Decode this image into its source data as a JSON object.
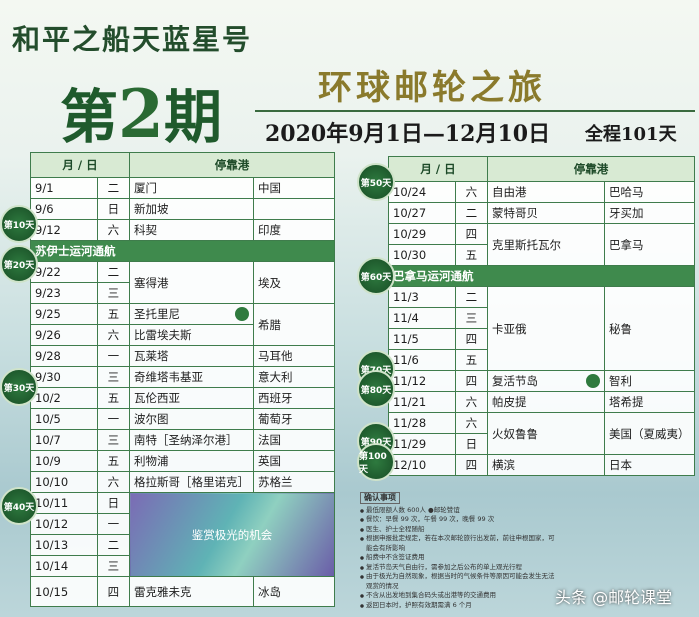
{
  "header": {
    "ship": "和平之船天蓝星号",
    "issue_prefix": "第",
    "issue_number": "2",
    "issue_suffix": "期",
    "title": "环球邮轮之旅",
    "dates": "2020年9月1日—12月10日",
    "duration": "全程101天"
  },
  "left_table": {
    "columns": [
      "月 / 日",
      "停靠港"
    ],
    "rows": [
      {
        "date": "9/1",
        "weekday": "二",
        "port": "厦门",
        "country": "中国"
      },
      {
        "date": "9/6",
        "weekday": "日",
        "port": "新加坡"
      },
      {
        "date": "9/12",
        "weekday": "六",
        "port": "科契",
        "country": "印度"
      },
      {
        "banner": "苏伊士运河通航"
      },
      {
        "date": "9/22",
        "weekday": "二",
        "port": "塞得港",
        "country": "埃及"
      },
      {
        "date": "9/23",
        "weekday": "三"
      },
      {
        "date": "9/25",
        "weekday": "五",
        "port": "圣托里尼",
        "country": "希腊"
      },
      {
        "date": "9/26",
        "weekday": "六",
        "port": "比雷埃夫斯"
      },
      {
        "date": "9/28",
        "weekday": "一",
        "port": "瓦莱塔",
        "country": "马耳他"
      },
      {
        "date": "9/30",
        "weekday": "三",
        "port": "奇维塔韦基亚",
        "country": "意大利"
      },
      {
        "date": "10/2",
        "weekday": "五",
        "port": "瓦伦西亚",
        "country": "西班牙"
      },
      {
        "date": "10/5",
        "weekday": "一",
        "port": "波尔图",
        "country": "葡萄牙"
      },
      {
        "date": "10/7",
        "weekday": "三",
        "port": "南特［圣纳泽尔港］",
        "country": "法国"
      },
      {
        "date": "10/9",
        "weekday": "五",
        "port": "利物浦",
        "country": "英国"
      },
      {
        "date": "10/10",
        "weekday": "六",
        "port": "格拉斯哥［格里诺克］",
        "country": "苏格兰"
      },
      {
        "date": "10/11",
        "weekday": "日",
        "highlight": "鉴赏极光的机会"
      },
      {
        "date": "10/12",
        "weekday": "一"
      },
      {
        "date": "10/13",
        "weekday": "二"
      },
      {
        "date": "10/14",
        "weekday": "三"
      },
      {
        "date": "10/15",
        "weekday": "四",
        "port": "雷克雅未克",
        "country": "冰岛"
      }
    ]
  },
  "right_table": {
    "columns": [
      "月 / 日",
      "停靠港"
    ],
    "rows": [
      {
        "date": "10/24",
        "weekday": "六",
        "port": "自由港",
        "country": "巴哈马"
      },
      {
        "date": "10/27",
        "weekday": "二",
        "port": "蒙特哥贝",
        "country": "牙买加"
      },
      {
        "date": "10/29",
        "weekday": "四",
        "port": "克里斯托瓦尔",
        "country": "巴拿马"
      },
      {
        "date": "10/30",
        "weekday": "五"
      },
      {
        "banner": "巴拿马运河通航"
      },
      {
        "date": "11/3",
        "weekday": "二",
        "port": "卡亚俄",
        "country": "秘鲁"
      },
      {
        "date": "11/4",
        "weekday": "三"
      },
      {
        "date": "11/5",
        "weekday": "四"
      },
      {
        "date": "11/6",
        "weekday": "五"
      },
      {
        "date": "11/12",
        "weekday": "四",
        "port": "复活节岛",
        "country": "智利"
      },
      {
        "date": "11/21",
        "weekday": "六",
        "port": "帕皮提",
        "country": "塔希提"
      },
      {
        "date": "11/28",
        "weekday": "六",
        "port": "火奴鲁鲁",
        "country": "美国（夏威夷）"
      },
      {
        "date": "11/29",
        "weekday": "日"
      },
      {
        "date": "12/10",
        "weekday": "四",
        "port": "横滨",
        "country": "日本"
      }
    ]
  },
  "day_badges": [
    "第10天",
    "第20天",
    "第30天",
    "第40天",
    "第50天",
    "第60天",
    "第70天",
    "第80天",
    "第90天",
    "第100天"
  ],
  "notes": {
    "title": "确认事项",
    "items": [
      "最低限额人数 600人 ●邮轮赞谊",
      "餐饮：早餐 99 次，午餐 99 次，晚餐 99 次",
      "医生、护士全程随船",
      "根据申报批定规定，若在本次邮轮旅行出发前，前往申根国家，可能会有所影响",
      "船费中不含签证费用",
      "复活节岛天气自由行，需参加之后公布的单上观光行程",
      "由于极光为自然现象，根据当时的气候条件等原因可能会发生无法观赏的情况",
      "不含从出发地到集合码头或出港等的交通费用",
      "返回日本时，护照有效期需满 6 个月"
    ]
  },
  "watermark": "头条 @邮轮课堂"
}
